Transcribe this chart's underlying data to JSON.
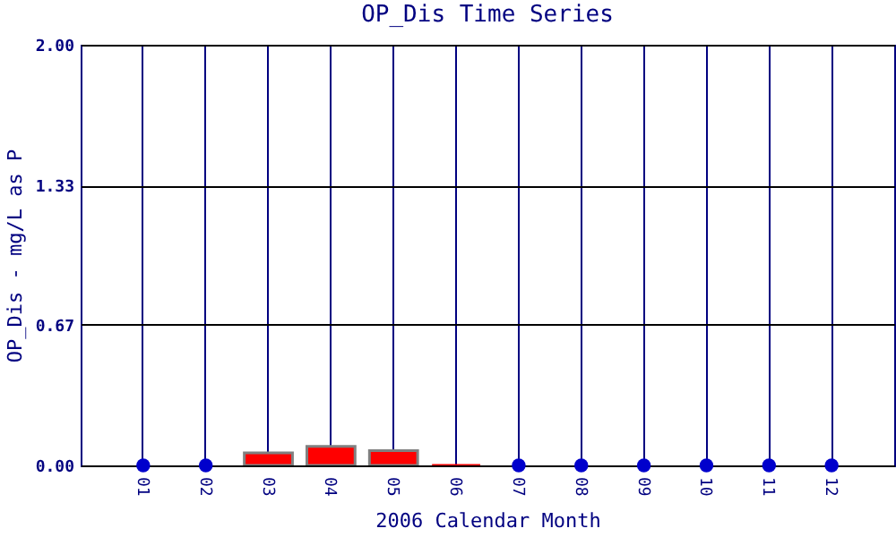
{
  "chart_data": {
    "type": "bar",
    "title": "OP_Dis Time Series",
    "xlabel": "2006 Calendar Month",
    "ylabel": "OP_Dis - mg/L as P",
    "categories": [
      "01",
      "02",
      "03",
      "04",
      "05",
      "06",
      "07",
      "08",
      "09",
      "10",
      "11",
      "12"
    ],
    "series": [
      {
        "color": "#ff0000",
        "values": [
          null,
          null,
          0.06,
          0.09,
          0.07,
          0,
          null,
          null,
          null,
          null,
          null,
          null
        ]
      },
      {
        "type": "scatter",
        "color": "#0000cc",
        "marker": "circle",
        "x": [
          "01",
          "02",
          "07",
          "08",
          "09",
          "10",
          "11",
          "12"
        ],
        "values": [
          0,
          0,
          0,
          0,
          0,
          0,
          0,
          0
        ]
      }
    ],
    "ylim": [
      0,
      2
    ],
    "yticks": [
      {
        "value": 0,
        "label": "0.00"
      },
      0.67,
      1.33,
      {
        "value": 2,
        "label": "2.00"
      }
    ],
    "grid": true
  }
}
